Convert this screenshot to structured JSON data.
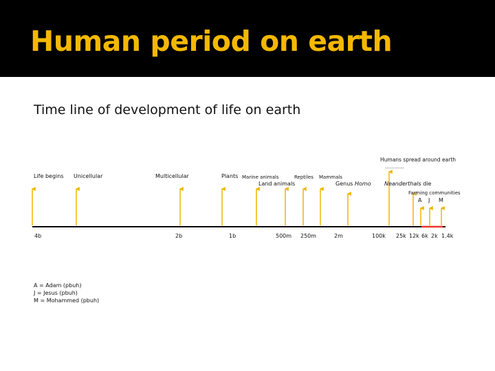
{
  "slide": {
    "title": "Human period on earth",
    "subtitle": "Time line of development of life on earth"
  },
  "timeline": {
    "events": {
      "life_begins": "Life begins",
      "unicellular": "Unicellular",
      "multicellular": "Multicellular",
      "plants": "Plants",
      "marine_animals": "Marine animals",
      "reptiles": "Reptiles",
      "mammals": "Mammals",
      "land_animals": "Land animals",
      "genus_homo_prefix": "Genus ",
      "genus_homo_italic": "Homo",
      "humans_spread": "Humans spread around earth",
      "dots": "…………",
      "neanderthals_italic": "Neanderthals",
      "neanderthals_suffix": " die",
      "farming": "Farming communities",
      "adam_letter": "A",
      "jesus_letter": "J",
      "mohammed_letter": "M"
    },
    "ticks": [
      "4b",
      "2b",
      "1b",
      "500m",
      "250m",
      "2m",
      "100k",
      "25k",
      "12k",
      "6k",
      "2k",
      "1.4k"
    ],
    "colors": {
      "arrow": "#f0b400",
      "axis": "#000000",
      "human_period": "#e8372a"
    }
  },
  "legend": {
    "adam": "A = Adam (pbuh)",
    "jesus": "J = Jesus (pbuh)",
    "mohammed": "M = Mohammed (pbuh)"
  }
}
